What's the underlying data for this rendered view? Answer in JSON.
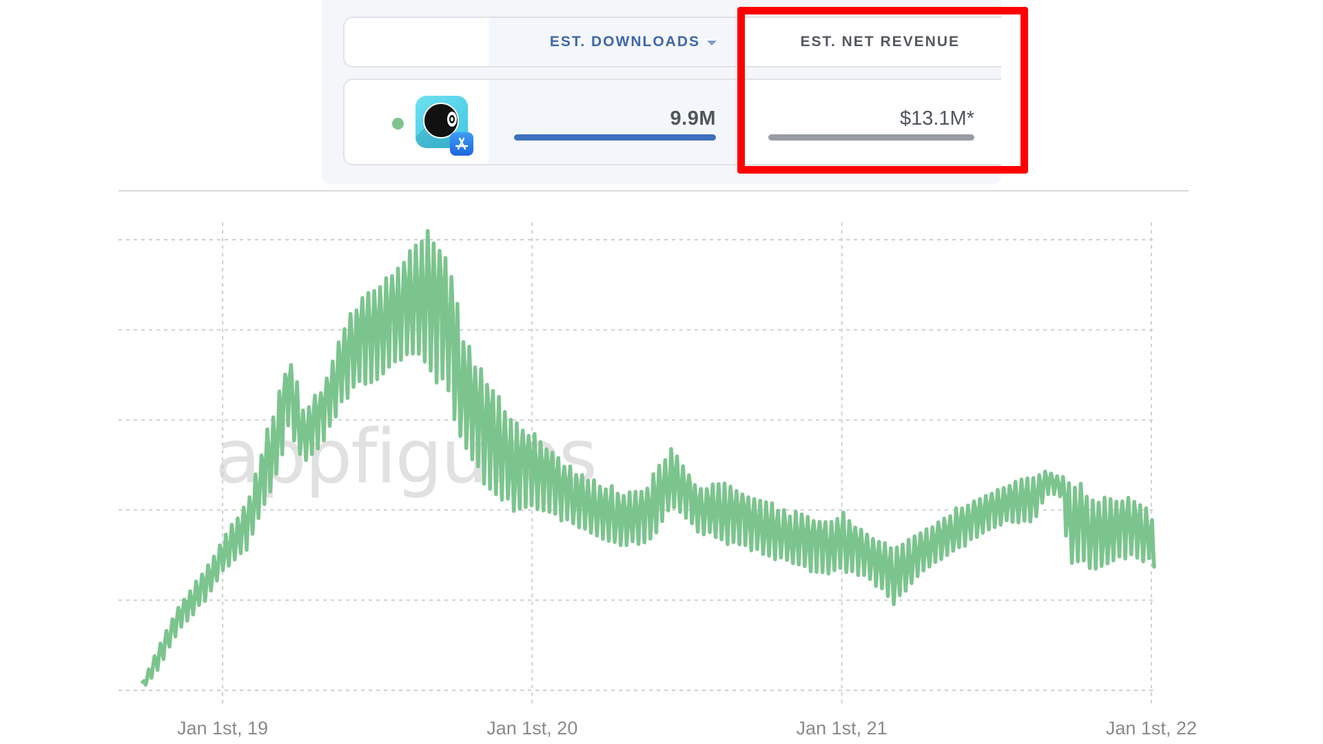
{
  "table": {
    "columns": [
      {
        "label": "EST. DOWNLOADS",
        "sortable": true,
        "sorted": true
      },
      {
        "label": "EST. NET REVENUE",
        "sortable": true,
        "sorted": false
      }
    ],
    "rows": [
      {
        "app_icon": "8-ball-app-icon",
        "store_badge": "app-store-icon",
        "status_color": "#7ec48f",
        "downloads": "9.9M",
        "net_revenue": "$13.1M*"
      }
    ]
  },
  "colors": {
    "downloads_bar": "#3d6fbd",
    "revenue_bar": "#979ca4",
    "series_line": "#7cc48e",
    "highlight_box": "#ff0000",
    "downloads_label": "#3f67a8"
  },
  "watermark": "appfigures",
  "chart_data": {
    "type": "line",
    "title": "",
    "xlabel": "",
    "ylabel": "",
    "x_ticks": [
      "Jan 1st, 19",
      "Jan 1st, 20",
      "Jan 1st, 21",
      "Jan 1st, 22"
    ],
    "y_ticks": [],
    "grid": true,
    "legend": [],
    "y_units_note": "no y-axis labels shown; values in gridline units (0 = bottom gridline, 5 = top gridline)",
    "ylim": [
      0,
      5
    ],
    "xlim_years_since_2019": [
      -0.26,
      3.01
    ],
    "series": [
      {
        "name": "Est. Downloads (daily)",
        "color": "#7cc48e",
        "envelope": [
          {
            "t": -0.258,
            "high": 0.09,
            "low": 0.02
          },
          {
            "t": -0.211,
            "high": 0.47,
            "low": 0.2
          },
          {
            "t": -0.147,
            "high": 0.93,
            "low": 0.63
          },
          {
            "t": -0.051,
            "high": 1.39,
            "low": 1.01
          },
          {
            "t": 0.0,
            "high": 1.69,
            "low": 1.31
          },
          {
            "t": 0.082,
            "high": 2.15,
            "low": 1.54
          },
          {
            "t": 0.127,
            "high": 2.69,
            "low": 2.0
          },
          {
            "t": 0.171,
            "high": 3.22,
            "low": 2.31
          },
          {
            "t": 0.216,
            "high": 3.76,
            "low": 2.92
          },
          {
            "t": 0.261,
            "high": 3.15,
            "low": 2.47
          },
          {
            "t": 0.327,
            "high": 3.38,
            "low": 2.77
          },
          {
            "t": 0.394,
            "high": 4.06,
            "low": 3.21
          },
          {
            "t": 0.461,
            "high": 4.52,
            "low": 3.37
          },
          {
            "t": 0.528,
            "high": 4.6,
            "low": 3.44
          },
          {
            "t": 0.595,
            "high": 4.9,
            "low": 3.67
          },
          {
            "t": 0.653,
            "high": 5.16,
            "low": 3.6
          },
          {
            "t": 0.728,
            "high": 4.98,
            "low": 3.21
          },
          {
            "t": 0.773,
            "high": 3.98,
            "low": 2.76
          },
          {
            "t": 0.84,
            "high": 3.6,
            "low": 2.3
          },
          {
            "t": 0.929,
            "high": 3.06,
            "low": 1.99
          },
          {
            "t": 1.0,
            "high": 2.91,
            "low": 1.99
          },
          {
            "t": 1.107,
            "high": 2.53,
            "low": 1.84
          },
          {
            "t": 1.196,
            "high": 2.37,
            "low": 1.69
          },
          {
            "t": 1.285,
            "high": 2.22,
            "low": 1.6
          },
          {
            "t": 1.374,
            "high": 2.3,
            "low": 1.6
          },
          {
            "t": 1.452,
            "high": 2.76,
            "low": 1.99
          },
          {
            "t": 1.53,
            "high": 2.3,
            "low": 1.76
          },
          {
            "t": 1.641,
            "high": 2.3,
            "low": 1.6
          },
          {
            "t": 1.73,
            "high": 2.15,
            "low": 1.53
          },
          {
            "t": 1.842,
            "high": 1.99,
            "low": 1.37
          },
          {
            "t": 1.953,
            "high": 1.92,
            "low": 1.24
          },
          {
            "t": 2.0,
            "high": 1.99,
            "low": 1.31
          },
          {
            "t": 2.082,
            "high": 1.76,
            "low": 1.24
          },
          {
            "t": 2.171,
            "high": 1.6,
            "low": 0.93
          },
          {
            "t": 2.26,
            "high": 1.76,
            "low": 1.31
          },
          {
            "t": 2.349,
            "high": 1.99,
            "low": 1.47
          },
          {
            "t": 2.438,
            "high": 2.15,
            "low": 1.69
          },
          {
            "t": 2.527,
            "high": 2.3,
            "low": 1.84
          },
          {
            "t": 2.616,
            "high": 2.37,
            "low": 1.84
          },
          {
            "t": 2.66,
            "high": 2.45,
            "low": 2.15
          },
          {
            "t": 2.705,
            "high": 2.37,
            "low": 2.15
          },
          {
            "t": 2.738,
            "high": 2.37,
            "low": 1.39
          },
          {
            "t": 2.838,
            "high": 2.15,
            "low": 1.31
          },
          {
            "t": 2.927,
            "high": 2.15,
            "low": 1.47
          },
          {
            "t": 3.0,
            "high": 2.07,
            "low": 1.39
          },
          {
            "t": 3.009,
            "high": 1.39,
            "low": 1.37
          }
        ],
        "notable_points": [
          {
            "label": "start",
            "t": -0.258,
            "value": 0.05
          },
          {
            "label": "peak",
            "t": 0.653,
            "value": 5.16
          },
          {
            "label": "local spike",
            "t": 1.452,
            "value": 2.76
          },
          {
            "label": "trough",
            "t": 2.16,
            "value": 0.93
          },
          {
            "label": "end",
            "t": 3.009,
            "value": 1.39
          }
        ]
      }
    ]
  }
}
